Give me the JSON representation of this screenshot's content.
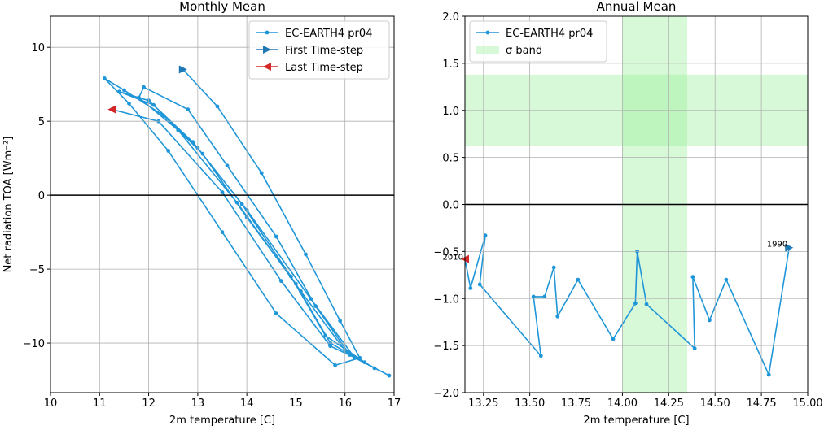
{
  "chart_data": [
    {
      "type": "line",
      "title": "Monthly Mean",
      "xlabel": "2m temperature [C]",
      "ylabel": "Net radiation TOA [Wm⁻²]",
      "xlim": [
        10,
        17
      ],
      "ylim": [
        -13.35,
        12.1
      ],
      "xticks": [
        10,
        11,
        12,
        13,
        14,
        15,
        16,
        17
      ],
      "yticks": [
        {
          "value": -10,
          "label": "−10"
        },
        {
          "value": -5,
          "label": "−5"
        },
        0,
        5,
        10
      ],
      "grid": true,
      "zero_line": true,
      "legend": "upper right",
      "series": [
        {
          "name": "EC-EARTH4 pr04",
          "color": "#1f96d8",
          "x": [
            12.7,
            13.4,
            14.3,
            15.2,
            15.9,
            16.3,
            15.8,
            14.6,
            13.5,
            12.4,
            11.6,
            11.1,
            11.5,
            12.3,
            13.1,
            14.0,
            15.0,
            15.7,
            16.6,
            16.0,
            15.1,
            13.8,
            12.6,
            11.8,
            11.9,
            12.8,
            13.6,
            14.6,
            15.4,
            16.1,
            16.9,
            16.2,
            15.3,
            14.0,
            12.9,
            12.0,
            11.4,
            12.1,
            13.0,
            13.9,
            14.9,
            15.6,
            16.4,
            15.7,
            14.7,
            13.5,
            12.2,
            11.25
          ],
          "values": [
            8.5,
            6.0,
            1.5,
            -4.0,
            -8.5,
            -11.0,
            -11.5,
            -8.0,
            -2.5,
            3.0,
            6.2,
            7.9,
            7.1,
            5.4,
            2.8,
            -1.5,
            -6.0,
            -10.0,
            -11.7,
            -10.5,
            -6.5,
            -0.5,
            4.4,
            6.6,
            7.3,
            5.8,
            2.0,
            -2.8,
            -7.5,
            -10.8,
            -12.2,
            -11.0,
            -7.0,
            -1.0,
            3.6,
            6.4,
            7.0,
            6.1,
            3.2,
            -0.6,
            -5.5,
            -9.5,
            -11.3,
            -10.2,
            -5.8,
            0.2,
            5.0,
            5.8
          ]
        }
      ],
      "first": {
        "label": "First Time-step",
        "color": "#1f77b4"
      },
      "last": {
        "label": "Last Time-step",
        "color": "#d62728"
      }
    },
    {
      "type": "line",
      "title": "Annual Mean",
      "xlabel": "2m temperature [C]",
      "xlim": [
        13.15,
        15.0
      ],
      "ylim": [
        -2.0,
        2.0
      ],
      "xticks": [
        13.25,
        {
          "value": 13.5,
          "label": "13.50"
        },
        13.75,
        {
          "value": 14,
          "label": "14.00"
        },
        14.25,
        {
          "value": 14.5,
          "label": "14.50"
        },
        14.75,
        {
          "value": 15,
          "label": "15.00"
        }
      ],
      "yticks": [
        {
          "value": -2,
          "label": "−2.0"
        },
        {
          "value": -1.5,
          "label": "−1.5"
        },
        {
          "value": -1,
          "label": "−1.0"
        },
        {
          "value": -0.5,
          "label": "−0.5"
        },
        {
          "value": 0,
          "label": "0.0"
        },
        0.5,
        {
          "value": 1,
          "label": "1.0"
        },
        1.5,
        {
          "value": 2,
          "label": "2.0"
        }
      ],
      "grid": true,
      "zero_line": true,
      "legend": "upper left",
      "series": [
        {
          "name": "EC-EARTH4 pr04",
          "color": "#1f96d8",
          "x": [
            14.9,
            14.79,
            14.56,
            14.47,
            14.38,
            14.39,
            14.13,
            14.08,
            14.07,
            13.95,
            13.76,
            13.65,
            13.63,
            13.58,
            13.52,
            13.56,
            13.23,
            13.26,
            13.18,
            13.15
          ],
          "values": [
            -0.46,
            -1.81,
            -0.8,
            -1.23,
            -0.77,
            -1.53,
            -1.06,
            -0.5,
            -1.05,
            -1.43,
            -0.8,
            -1.19,
            -0.67,
            -0.98,
            -0.98,
            -1.61,
            -0.85,
            -0.33,
            -0.89,
            -0.58
          ]
        }
      ],
      "first": {
        "color": "#1f77b4"
      },
      "last": {
        "color": "#d62728"
      },
      "annotations": [
        "1990",
        "2010"
      ],
      "band": {
        "name": "σ band",
        "color": "#90ee90",
        "x": [
          14.0,
          14.35
        ],
        "y": [
          0.62,
          1.38
        ]
      }
    }
  ]
}
